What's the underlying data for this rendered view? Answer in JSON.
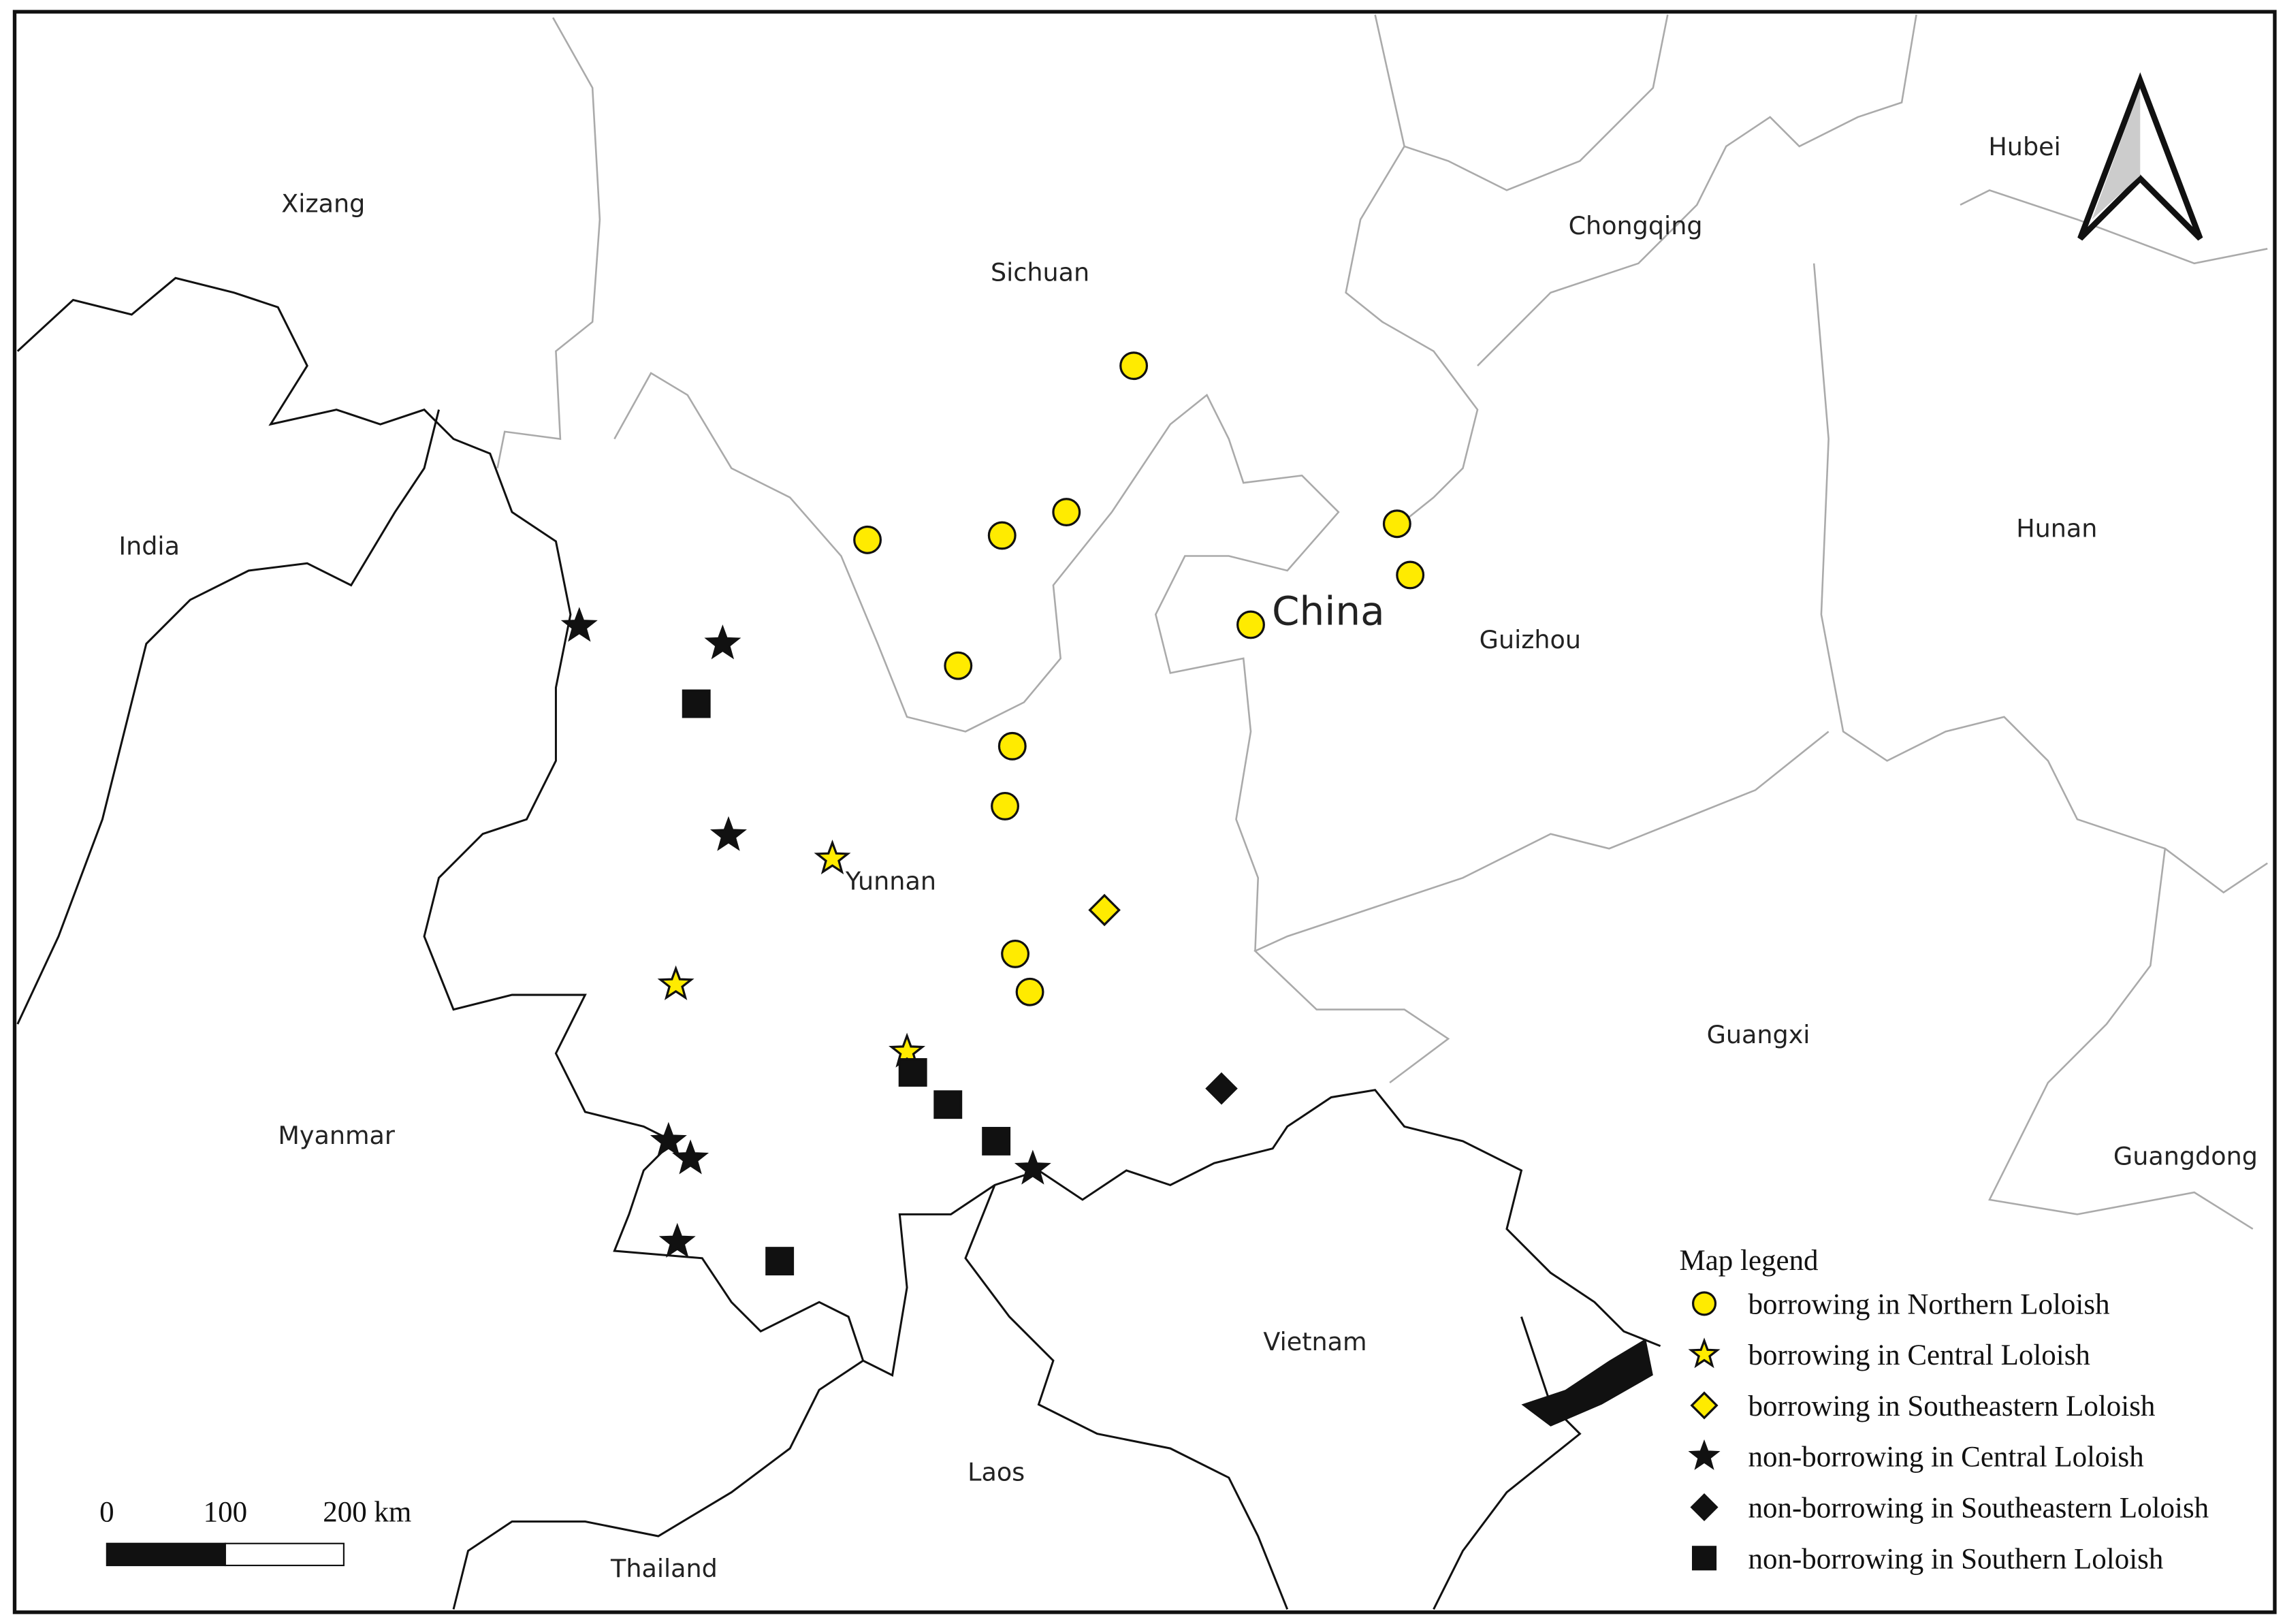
{
  "map": {
    "regions": [
      "Xizang",
      "Sichuan",
      "Hubei",
      "Chongqing",
      "India",
      "China",
      "Guizhou",
      "Hunan",
      "Yunnan",
      "Myanmar",
      "Guangxi",
      "Guangdong",
      "Vietnam",
      "Laos",
      "Thailand"
    ],
    "legend": {
      "title": "Map legend",
      "items": [
        "borrowing in Northern Loloish",
        "borrowing in Central Loloish",
        "borrowing in Southeastern Loloish",
        "non-borrowing in Central Loloish",
        "non-borrowing in Southeastern Loloish",
        "non-borrowing in Southern Loloish"
      ]
    },
    "scale_bar": {
      "labels": [
        "0",
        "100",
        "200 km"
      ]
    }
  }
}
